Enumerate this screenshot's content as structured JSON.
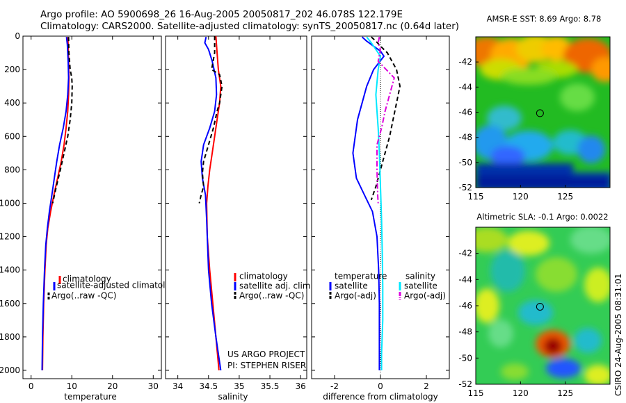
{
  "header": {
    "line1": "Argo profile: AO 5900698_26 16-Aug-2005 20050817_202 46.078S 122.179E",
    "line2": "Climatology: CARS2000. Satellite-adjusted climatology: synTS_20050817.nc (0.64d later)"
  },
  "footer": {
    "project": "US ARGO PROJECT",
    "pi": "PI: STEPHEN RISER",
    "stamp": "CSIRO 24-Aug-2005 08:31:01"
  },
  "colors": {
    "climatology": "#ff0000",
    "satellite": "#0000ff",
    "argo": "#000000",
    "satellite_salinity": "#00e8ff",
    "argo_salinity": "#dd00dd"
  },
  "chart_data": [
    {
      "type": "line",
      "panel": "temperature",
      "xlabel": "temperature",
      "ylabel": "",
      "xlim": [
        -2,
        32
      ],
      "ylim": [
        2050,
        0
      ],
      "xticks": [
        0,
        10,
        20,
        30
      ],
      "yticks": [
        0,
        200,
        400,
        600,
        800,
        1000,
        1200,
        1400,
        1600,
        1800,
        2000
      ],
      "legend": [
        "climatology",
        "satellite-adjusted climatology",
        "Argo(..raw -QC)"
      ],
      "legend_placement": "lower-center",
      "series": [
        {
          "name": "climatology",
          "style": "solid",
          "points": [
            [
              9.0,
              5
            ],
            [
              9.1,
              50
            ],
            [
              9.2,
              150
            ],
            [
              9.3,
              250
            ],
            [
              9.2,
              350
            ],
            [
              9.0,
              450
            ],
            [
              8.6,
              550
            ],
            [
              8.1,
              650
            ],
            [
              7.4,
              750
            ],
            [
              6.5,
              850
            ],
            [
              5.6,
              950
            ],
            [
              4.8,
              1050
            ],
            [
              4.1,
              1150
            ],
            [
              3.7,
              1250
            ],
            [
              3.4,
              1400
            ],
            [
              3.1,
              1600
            ],
            [
              2.9,
              1800
            ],
            [
              2.8,
              2000
            ]
          ]
        },
        {
          "name": "satellite-adjusted climatology",
          "style": "solid",
          "points": [
            [
              8.7,
              5
            ],
            [
              8.9,
              50
            ],
            [
              9.1,
              150
            ],
            [
              9.2,
              250
            ],
            [
              9.0,
              350
            ],
            [
              8.6,
              450
            ],
            [
              7.9,
              550
            ],
            [
              7.0,
              650
            ],
            [
              6.3,
              750
            ],
            [
              5.7,
              850
            ],
            [
              5.1,
              950
            ],
            [
              4.5,
              1050
            ],
            [
              4.0,
              1150
            ],
            [
              3.6,
              1250
            ],
            [
              3.3,
              1400
            ],
            [
              3.0,
              1600
            ],
            [
              2.8,
              1800
            ],
            [
              2.7,
              2000
            ]
          ]
        },
        {
          "name": "Argo(..raw -QC)",
          "style": "dashed",
          "points": [
            [
              9.2,
              5
            ],
            [
              9.3,
              100
            ],
            [
              9.6,
              200
            ],
            [
              10.0,
              250
            ],
            [
              10.1,
              300
            ],
            [
              10.0,
              400
            ],
            [
              9.6,
              500
            ],
            [
              9.0,
              600
            ],
            [
              8.1,
              700
            ],
            [
              7.2,
              800
            ],
            [
              6.2,
              900
            ],
            [
              5.3,
              1000
            ]
          ]
        }
      ]
    },
    {
      "type": "line",
      "panel": "salinity",
      "xlabel": "salinity",
      "xlim": [
        33.8,
        36.1
      ],
      "ylim": [
        2050,
        0
      ],
      "xticks": [
        34,
        34.5,
        35,
        35.5,
        36
      ],
      "xticklabels": [
        "34",
        "34.5",
        "35",
        "35.5",
        "36"
      ],
      "legend": [
        "climatology",
        "satellite adj. clim.",
        "Argo(..raw -QC)"
      ],
      "legend_placement": "lower-right",
      "series": [
        {
          "name": "climatology",
          "style": "solid",
          "points": [
            [
              34.62,
              0
            ],
            [
              34.64,
              100
            ],
            [
              34.66,
              200
            ],
            [
              34.7,
              300
            ],
            [
              34.68,
              400
            ],
            [
              34.64,
              500
            ],
            [
              34.6,
              600
            ],
            [
              34.56,
              700
            ],
            [
              34.52,
              800
            ],
            [
              34.49,
              900
            ],
            [
              34.47,
              1000
            ],
            [
              34.48,
              1200
            ],
            [
              34.52,
              1400
            ],
            [
              34.57,
              1600
            ],
            [
              34.62,
              1800
            ],
            [
              34.67,
              2000
            ]
          ]
        },
        {
          "name": "satellite adj. clim.",
          "style": "solid",
          "points": [
            [
              34.46,
              5
            ],
            [
              34.44,
              40
            ],
            [
              34.5,
              80
            ],
            [
              34.56,
              150
            ],
            [
              34.62,
              250
            ],
            [
              34.63,
              350
            ],
            [
              34.6,
              450
            ],
            [
              34.52,
              550
            ],
            [
              34.42,
              650
            ],
            [
              34.38,
              750
            ],
            [
              34.4,
              850
            ],
            [
              34.45,
              950
            ],
            [
              34.47,
              1100
            ],
            [
              34.48,
              1200
            ],
            [
              34.5,
              1400
            ],
            [
              34.55,
              1600
            ],
            [
              34.62,
              1800
            ],
            [
              34.7,
              2000
            ]
          ]
        },
        {
          "name": "Argo(..raw -QC)",
          "style": "dashed",
          "points": [
            [
              34.6,
              0
            ],
            [
              34.6,
              100
            ],
            [
              34.55,
              200
            ],
            [
              34.68,
              230
            ],
            [
              34.72,
              300
            ],
            [
              34.68,
              400
            ],
            [
              34.64,
              450
            ],
            [
              34.58,
              550
            ],
            [
              34.5,
              650
            ],
            [
              34.42,
              750
            ],
            [
              34.4,
              820
            ],
            [
              34.42,
              900
            ],
            [
              34.38,
              950
            ],
            [
              34.35,
              1000
            ]
          ]
        }
      ]
    },
    {
      "type": "line",
      "panel": "difference",
      "xlabel": "difference from climatology",
      "xlim": [
        -3.0,
        3.0
      ],
      "ylim": [
        2050,
        0
      ],
      "xticks": [
        -2,
        0,
        2
      ],
      "legend_headers": [
        "temperature",
        "salinity"
      ],
      "legend": [
        "satellite",
        "Argo(-adj)",
        "satellite",
        "Argo(-adj)"
      ],
      "legend_placement": "lower-center",
      "series": [
        {
          "name": "satellite",
          "group": "temperature",
          "style": "solid",
          "points": [
            [
              -0.8,
              5
            ],
            [
              -0.6,
              30
            ],
            [
              -0.3,
              60
            ],
            [
              0,
              90
            ],
            [
              0.15,
              120
            ],
            [
              -0.3,
              200
            ],
            [
              -0.6,
              300
            ],
            [
              -0.8,
              400
            ],
            [
              -1.0,
              500
            ],
            [
              -1.1,
              600
            ],
            [
              -1.2,
              700
            ],
            [
              -1.05,
              850
            ],
            [
              -0.7,
              950
            ],
            [
              -0.35,
              1050
            ],
            [
              -0.15,
              1200
            ],
            [
              -0.08,
              1400
            ],
            [
              -0.05,
              1600
            ],
            [
              -0.05,
              1800
            ],
            [
              -0.05,
              2000
            ]
          ]
        },
        {
          "name": "Argo(-adj)",
          "group": "temperature",
          "style": "dashed",
          "points": [
            [
              -0.4,
              5
            ],
            [
              -0.2,
              30
            ],
            [
              0,
              60
            ],
            [
              0.3,
              100
            ],
            [
              0.7,
              200
            ],
            [
              0.85,
              300
            ],
            [
              0.7,
              400
            ],
            [
              0.55,
              500
            ],
            [
              0.4,
              600
            ],
            [
              0.2,
              700
            ],
            [
              0,
              800
            ],
            [
              -0.2,
              900
            ],
            [
              -0.4,
              980
            ]
          ]
        },
        {
          "name": "satellite",
          "group": "salinity",
          "style": "solid",
          "points": [
            [
              -0.6,
              5
            ],
            [
              -0.4,
              40
            ],
            [
              -0.2,
              80
            ],
            [
              0,
              120
            ],
            [
              -0.1,
              200
            ],
            [
              -0.2,
              350
            ],
            [
              -0.15,
              450
            ],
            [
              -0.1,
              550
            ],
            [
              -0.05,
              700
            ],
            [
              0,
              900
            ],
            [
              0.05,
              1100
            ],
            [
              0.08,
              1300
            ],
            [
              0.1,
              1500
            ],
            [
              0.1,
              1700
            ],
            [
              0.05,
              1900
            ],
            [
              0.05,
              2000
            ]
          ]
        },
        {
          "name": "Argo(-adj)",
          "group": "salinity",
          "style": "dashdot",
          "points": [
            [
              -0.05,
              5
            ],
            [
              -0.1,
              40
            ],
            [
              0.0,
              80
            ],
            [
              -0.1,
              150
            ],
            [
              0.6,
              250
            ],
            [
              0.4,
              350
            ],
            [
              0.2,
              450
            ],
            [
              0.05,
              550
            ],
            [
              -0.15,
              650
            ],
            [
              -0.15,
              800
            ],
            [
              -0.12,
              950
            ],
            [
              -0.1,
              1000
            ]
          ]
        }
      ]
    },
    {
      "type": "heatmap",
      "panel": "sst-map",
      "title": "AMSR-E SST: 8.69 Argo: 8.78",
      "xlim": [
        115,
        130
      ],
      "ylim": [
        -52,
        -40
      ],
      "xticks": [
        115,
        120,
        125
      ],
      "yticks": [
        -42,
        -44,
        -46,
        -48,
        -50,
        -52
      ],
      "marker": {
        "lon": 122.179,
        "lat": -46.078
      }
    },
    {
      "type": "heatmap",
      "panel": "sla-map",
      "title": "Altimetric SLA: -0.1 Argo: 0.0022",
      "xlim": [
        115,
        130
      ],
      "ylim": [
        -52,
        -40
      ],
      "xticks": [
        115,
        120,
        125
      ],
      "yticks": [
        -42,
        -44,
        -46,
        -48,
        -50,
        -52
      ],
      "marker": {
        "lon": 122.179,
        "lat": -46.078
      }
    }
  ]
}
